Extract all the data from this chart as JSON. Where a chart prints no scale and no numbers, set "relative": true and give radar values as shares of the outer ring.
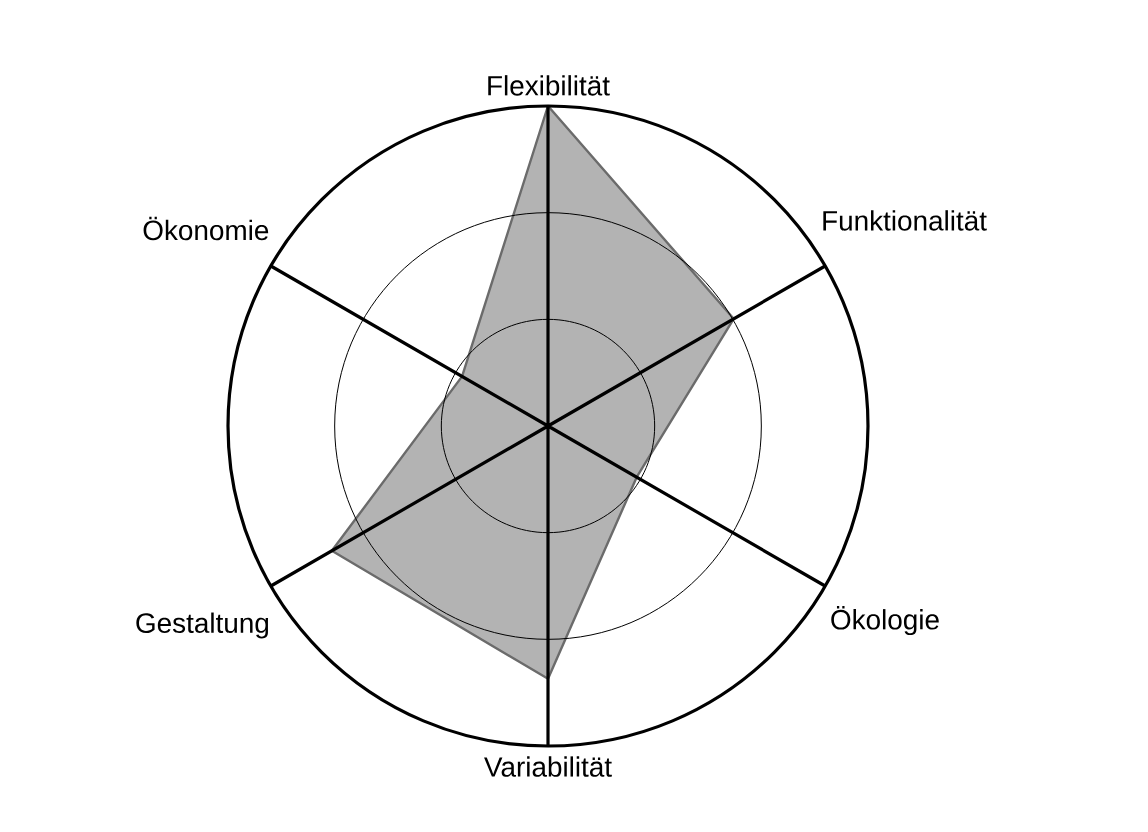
{
  "chart_data": {
    "type": "radar",
    "categories": [
      "Flexibilität",
      "Funktionalität",
      "Ökologie",
      "Variabilität",
      "Gestaltung",
      "Ökonomie"
    ],
    "relative": true,
    "grid": true,
    "series": [
      {
        "color": "#b3b3b3",
        "values": [
          1.0,
          0.67,
          0.32,
          0.79,
          0.78,
          0.31
        ]
      }
    ]
  }
}
